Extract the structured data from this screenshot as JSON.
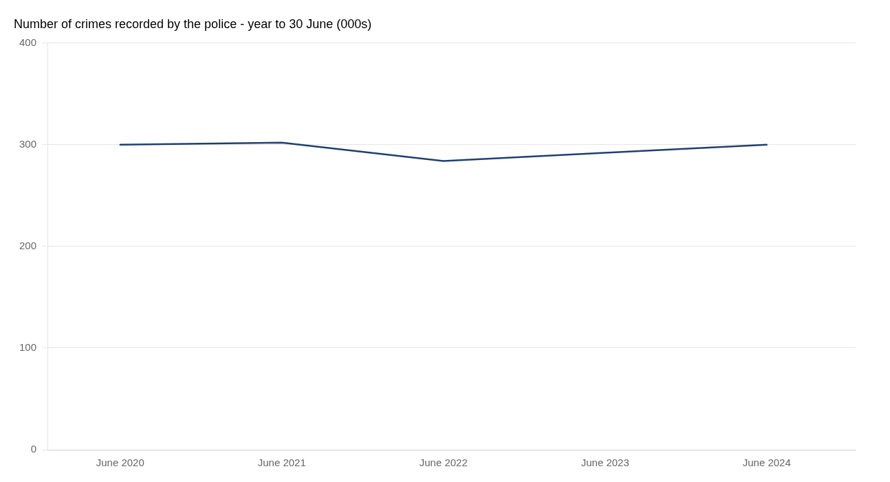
{
  "chart_data": {
    "type": "line",
    "title": "Number of crimes recorded by the police - year to 30 June (000s)",
    "x": [
      2020,
      2021,
      2022,
      2023,
      2024
    ],
    "values": [
      300,
      302,
      284,
      292,
      300
    ],
    "color": "#1f3f6e",
    "xlim": [
      2019.55,
      2024.55
    ],
    "xticks": [
      {
        "value": 2020,
        "label": "June 2020"
      },
      {
        "value": 2021,
        "label": "June 2021"
      },
      {
        "value": 2022,
        "label": "June 2022"
      },
      {
        "value": 2023,
        "label": "June 2023"
      },
      {
        "value": 2024,
        "label": "June 2024"
      }
    ],
    "ylim": [
      0,
      400
    ],
    "yticks": [
      0,
      100,
      200,
      300,
      400
    ],
    "grid": "y"
  }
}
